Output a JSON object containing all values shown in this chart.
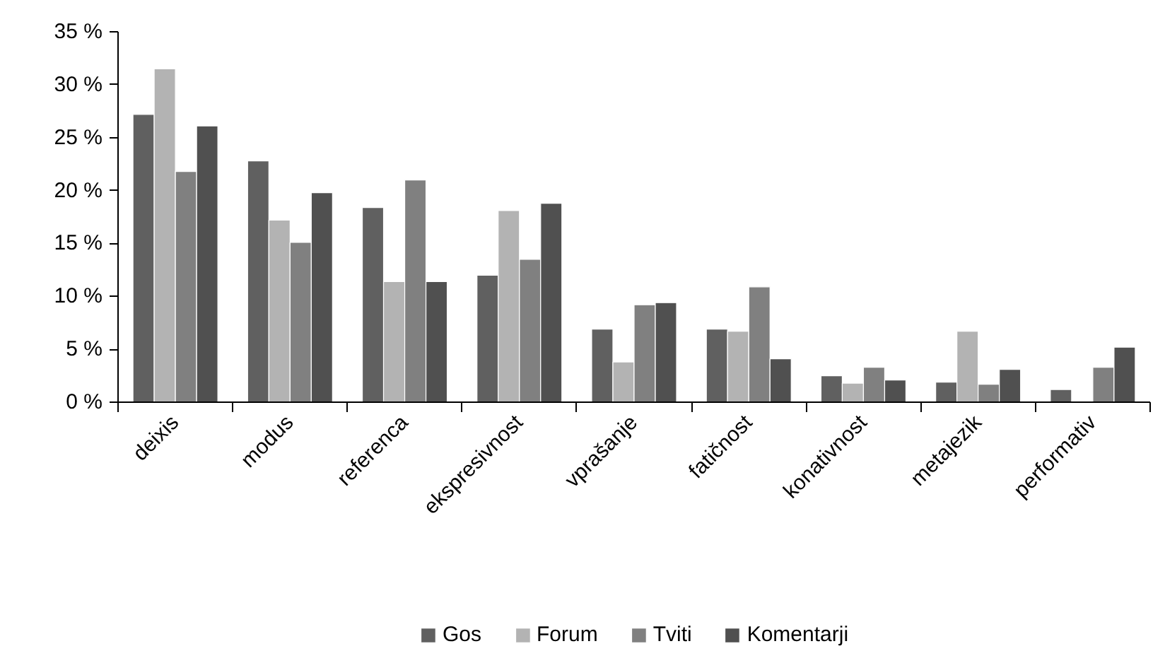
{
  "chart_data": {
    "type": "bar",
    "categories": [
      "deixis",
      "modus",
      "referenca",
      "ekspresivnost",
      "vprašanje",
      "fatičnost",
      "konativnost",
      "metajezik",
      "performativ"
    ],
    "series": [
      {
        "name": "Gos",
        "color": "#606060",
        "values": [
          27.2,
          22.8,
          18.4,
          12.0,
          6.9,
          6.9,
          2.5,
          1.9,
          1.2
        ]
      },
      {
        "name": "Forum",
        "color": "#b3b3b3",
        "values": [
          31.5,
          17.2,
          11.4,
          18.1,
          3.8,
          6.7,
          1.8,
          6.7,
          null
        ]
      },
      {
        "name": "Tviti",
        "color": "#808080",
        "values": [
          21.8,
          15.1,
          21.0,
          13.5,
          9.2,
          10.9,
          3.3,
          1.7,
          3.3
        ]
      },
      {
        "name": "Komentarji",
        "color": "#505050",
        "values": [
          26.1,
          19.8,
          11.4,
          18.8,
          9.4,
          4.1,
          2.1,
          3.1,
          5.2
        ]
      }
    ],
    "ylim": [
      0,
      35
    ],
    "yticks": [
      {
        "value": 0,
        "label": "0 %"
      },
      {
        "value": 5,
        "label": "5 %"
      },
      {
        "value": 10,
        "label": "10 %"
      },
      {
        "value": 15,
        "label": "15 %"
      },
      {
        "value": 20,
        "label": "20 %"
      },
      {
        "value": 25,
        "label": "25 %"
      },
      {
        "value": 30,
        "label": "30 %"
      },
      {
        "value": 35,
        "label": "35 %"
      }
    ],
    "grid": false,
    "legend": "bottom"
  }
}
